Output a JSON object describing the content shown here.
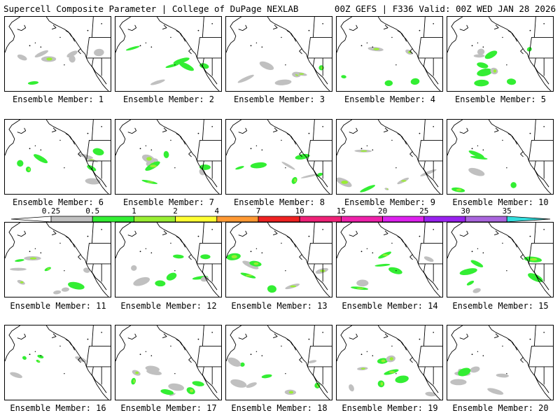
{
  "header": {
    "title_left": "Supercell Composite Parameter | College of DuPage NEXLAB",
    "title_right": "00Z GEFS | F336 Valid: 00Z WED JAN 28 2026"
  },
  "colorbar": {
    "ticks": [
      "0.25",
      "0.5",
      "1",
      "2",
      "4",
      "7",
      "10",
      "15",
      "20",
      "25",
      "30",
      "35"
    ],
    "colors": [
      "#c0c0c0",
      "#33ee33",
      "#99ee33",
      "#ffff33",
      "#ff9933",
      "#ee2222",
      "#ee2277",
      "#ee22aa",
      "#dd22ee",
      "#9922ee",
      "#aa66dd",
      "#33dddd"
    ]
  },
  "panels": [
    {
      "label": "Ensemble Member: 1"
    },
    {
      "label": "Ensemble Member: 2"
    },
    {
      "label": "Ensemble Member: 3"
    },
    {
      "label": "Ensemble Member: 4"
    },
    {
      "label": "Ensemble Member: 5"
    },
    {
      "label": "Ensemble Member: 6"
    },
    {
      "label": "Ensemble Member: 7"
    },
    {
      "label": "Ensemble Member: 8"
    },
    {
      "label": "Ensemble Member: 9"
    },
    {
      "label": "Ensemble Member: 10"
    },
    {
      "label": "Ensemble Member: 11"
    },
    {
      "label": "Ensemble Member: 12"
    },
    {
      "label": "Ensemble Member: 13"
    },
    {
      "label": "Ensemble Member: 14"
    },
    {
      "label": "Ensemble Member: 15"
    },
    {
      "label": "Ensemble Member: 16"
    },
    {
      "label": "Ensemble Member: 17"
    },
    {
      "label": "Ensemble Member: 18"
    },
    {
      "label": "Ensemble Member: 19"
    },
    {
      "label": "Ensemble Member: 20"
    }
  ]
}
